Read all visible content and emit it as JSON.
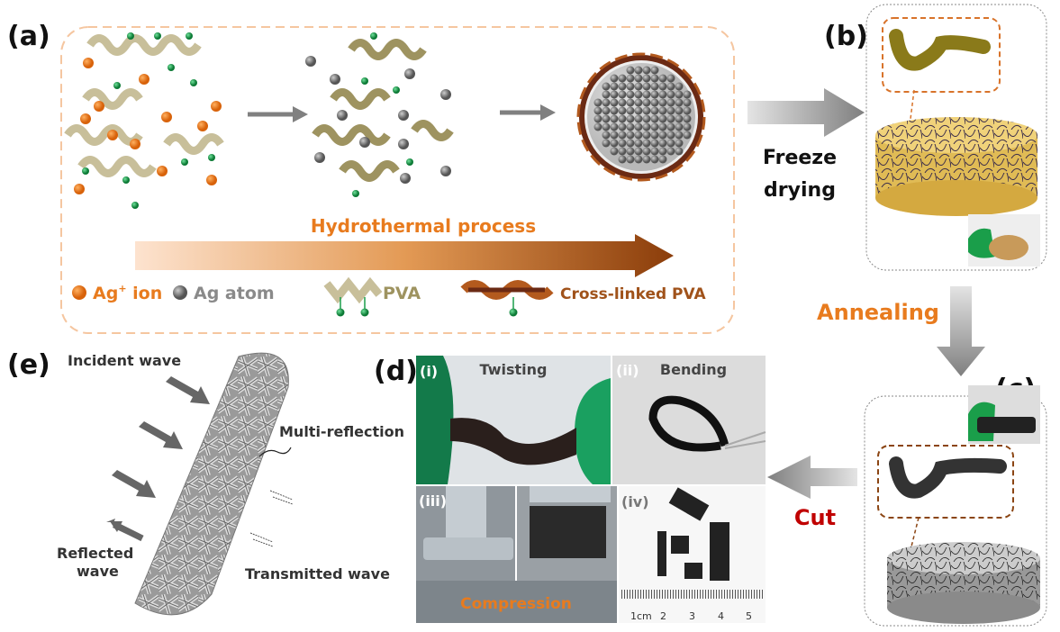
{
  "panels": {
    "a": {
      "label": "(a)",
      "process": "Hydrothermal process",
      "legend": {
        "ag_ion": "Ag",
        "ag_ion_sup": "+",
        "ag_ion_suffix": " ion",
        "ag_atom": "Ag atom",
        "pva": "PVA",
        "crosslinked": "Cross-linked PVA"
      }
    },
    "b": {
      "label": "(b)"
    },
    "c": {
      "label": "(c)"
    },
    "d": {
      "label": "(d)",
      "photos": [
        {
          "index": "(i)",
          "caption": "Twisting"
        },
        {
          "index": "(ii)",
          "caption": "Bending"
        },
        {
          "index": "(iii)",
          "caption": "Compression"
        },
        {
          "index": "(iv)",
          "caption": ""
        }
      ],
      "ruler": [
        "1cm",
        "2",
        "3",
        "4",
        "5"
      ]
    },
    "e": {
      "label": "(e)",
      "incident": "Incident wave",
      "multi": "Multi-reflection",
      "reflected_1": "Reflected",
      "reflected_2": "wave",
      "transmitted": "Transmitted wave"
    }
  },
  "steps": {
    "freeze_1": "Freeze",
    "freeze_2": "drying",
    "annealing": "Annealing",
    "cut": "Cut"
  },
  "colors": {
    "orange": "#e87b1e",
    "brown": "#8b4513",
    "pva": "#c8bf9a",
    "gray_arrow": "#808080",
    "cut": "#c00000",
    "green": "#1a9e4a"
  }
}
